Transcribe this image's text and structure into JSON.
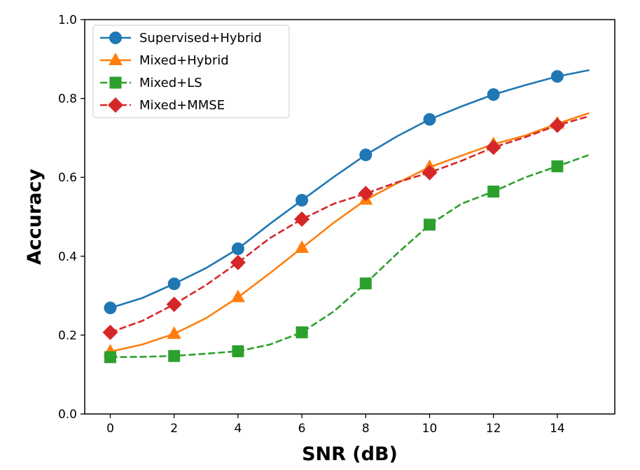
{
  "chart_data": {
    "type": "line",
    "title": "",
    "xlabel": "SNR (dB)",
    "ylabel": "Accuracy",
    "xlim": [
      -0.8,
      15.8
    ],
    "ylim": [
      0.0,
      1.0
    ],
    "xticks": [
      0,
      2,
      4,
      6,
      8,
      10,
      12,
      14
    ],
    "yticks": [
      0.0,
      0.2,
      0.4,
      0.6,
      0.8,
      1.0
    ],
    "xtick_labels": [
      "0",
      "2",
      "4",
      "6",
      "8",
      "10",
      "12",
      "14"
    ],
    "ytick_labels": [
      "0.0",
      "0.2",
      "0.4",
      "0.6",
      "0.8",
      "1.0"
    ],
    "grid": false,
    "legend_position": "top-left",
    "x": [
      0,
      1,
      2,
      3,
      4,
      5,
      6,
      7,
      8,
      9,
      10,
      11,
      12,
      13,
      14,
      15
    ],
    "series": [
      {
        "name": "Supervised+Hybrid",
        "color": "#1f77b4",
        "linestyle": "solid",
        "marker": "circle",
        "values": [
          0.269,
          0.294,
          0.33,
          0.37,
          0.419,
          0.482,
          0.542,
          0.601,
          0.657,
          0.705,
          0.747,
          0.78,
          0.81,
          0.834,
          0.856,
          0.872
        ]
      },
      {
        "name": "Mixed+Hybrid",
        "color": "#ff7f0e",
        "linestyle": "solid",
        "marker": "triangle",
        "values": [
          0.158,
          0.176,
          0.203,
          0.243,
          0.296,
          0.357,
          0.421,
          0.485,
          0.543,
          0.586,
          0.626,
          0.655,
          0.684,
          0.706,
          0.736,
          0.763
        ]
      },
      {
        "name": "Mixed+LS",
        "color": "#2ca02c",
        "linestyle": "dashed",
        "marker": "square",
        "values": [
          0.144,
          0.145,
          0.147,
          0.153,
          0.159,
          0.176,
          0.207,
          0.26,
          0.331,
          0.408,
          0.48,
          0.533,
          0.564,
          0.6,
          0.628,
          0.657
        ]
      },
      {
        "name": "Mixed+MMSE",
        "color": "#d62728",
        "linestyle": "dashed",
        "marker": "diamond",
        "values": [
          0.207,
          0.236,
          0.278,
          0.327,
          0.384,
          0.446,
          0.494,
          0.533,
          0.559,
          0.588,
          0.612,
          0.642,
          0.676,
          0.702,
          0.732,
          0.755
        ]
      }
    ]
  }
}
